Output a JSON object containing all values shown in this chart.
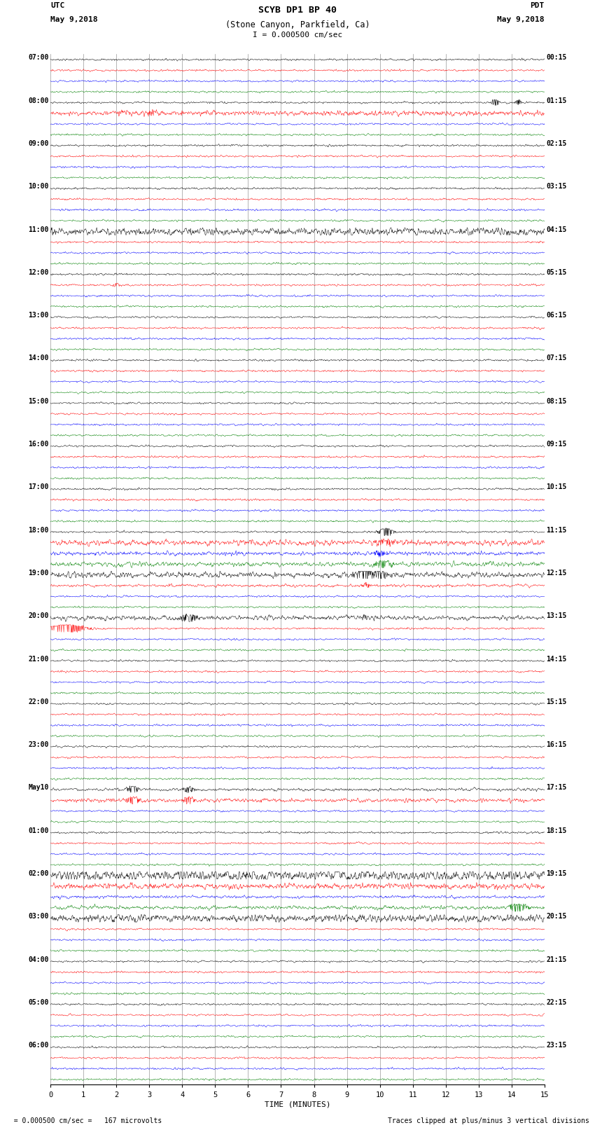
{
  "title_line1": "SCYB DP1 BP 40",
  "title_line2": "(Stone Canyon, Parkfield, Ca)",
  "scale_label": "I = 0.000500 cm/sec",
  "left_label_top": "UTC",
  "left_label_date": "May 9,2018",
  "right_label_top": "PDT",
  "right_label_date": "May 9,2018",
  "xlabel": "TIME (MINUTES)",
  "footer_left": "  = 0.000500 cm/sec =   167 microvolts",
  "footer_right": "Traces clipped at plus/minus 3 vertical divisions",
  "bg_color": "#ffffff",
  "grid_color": "#aaaaaa",
  "xmin": 0,
  "xmax": 15,
  "xticks": [
    0,
    1,
    2,
    3,
    4,
    5,
    6,
    7,
    8,
    9,
    10,
    11,
    12,
    13,
    14,
    15
  ],
  "figwidth": 8.5,
  "figheight": 16.13,
  "trace_colors": [
    "black",
    "red",
    "blue",
    "green"
  ],
  "left_utc_times": [
    "07:00",
    "",
    "",
    "",
    "08:00",
    "",
    "",
    "",
    "09:00",
    "",
    "",
    "",
    "10:00",
    "",
    "",
    "",
    "11:00",
    "",
    "",
    "",
    "12:00",
    "",
    "",
    "",
    "13:00",
    "",
    "",
    "",
    "14:00",
    "",
    "",
    "",
    "15:00",
    "",
    "",
    "",
    "16:00",
    "",
    "",
    "",
    "17:00",
    "",
    "",
    "",
    "18:00",
    "",
    "",
    "",
    "19:00",
    "",
    "",
    "",
    "20:00",
    "",
    "",
    "",
    "21:00",
    "",
    "",
    "",
    "22:00",
    "",
    "",
    "",
    "23:00",
    "",
    "",
    "",
    "May10",
    "",
    "",
    "",
    "01:00",
    "",
    "",
    "",
    "02:00",
    "",
    "",
    "",
    "03:00",
    "",
    "",
    "",
    "04:00",
    "",
    "",
    "",
    "05:00",
    "",
    "",
    "",
    "06:00",
    "",
    "",
    ""
  ],
  "right_pdt_times": [
    "00:15",
    "",
    "",
    "",
    "01:15",
    "",
    "",
    "",
    "02:15",
    "",
    "",
    "",
    "03:15",
    "",
    "",
    "",
    "04:15",
    "",
    "",
    "",
    "05:15",
    "",
    "",
    "",
    "06:15",
    "",
    "",
    "",
    "07:15",
    "",
    "",
    "",
    "08:15",
    "",
    "",
    "",
    "09:15",
    "",
    "",
    "",
    "10:15",
    "",
    "",
    "",
    "11:15",
    "",
    "",
    "",
    "12:15",
    "",
    "",
    "",
    "13:15",
    "",
    "",
    "",
    "14:15",
    "",
    "",
    "",
    "15:15",
    "",
    "",
    "",
    "16:15",
    "",
    "",
    "",
    "17:15",
    "",
    "",
    "",
    "18:15",
    "",
    "",
    "",
    "19:15",
    "",
    "",
    "",
    "20:15",
    "",
    "",
    "",
    "21:15",
    "",
    "",
    "",
    "22:15",
    "",
    "",
    "",
    "23:15",
    "",
    "",
    ""
  ],
  "noise_seed": 42
}
